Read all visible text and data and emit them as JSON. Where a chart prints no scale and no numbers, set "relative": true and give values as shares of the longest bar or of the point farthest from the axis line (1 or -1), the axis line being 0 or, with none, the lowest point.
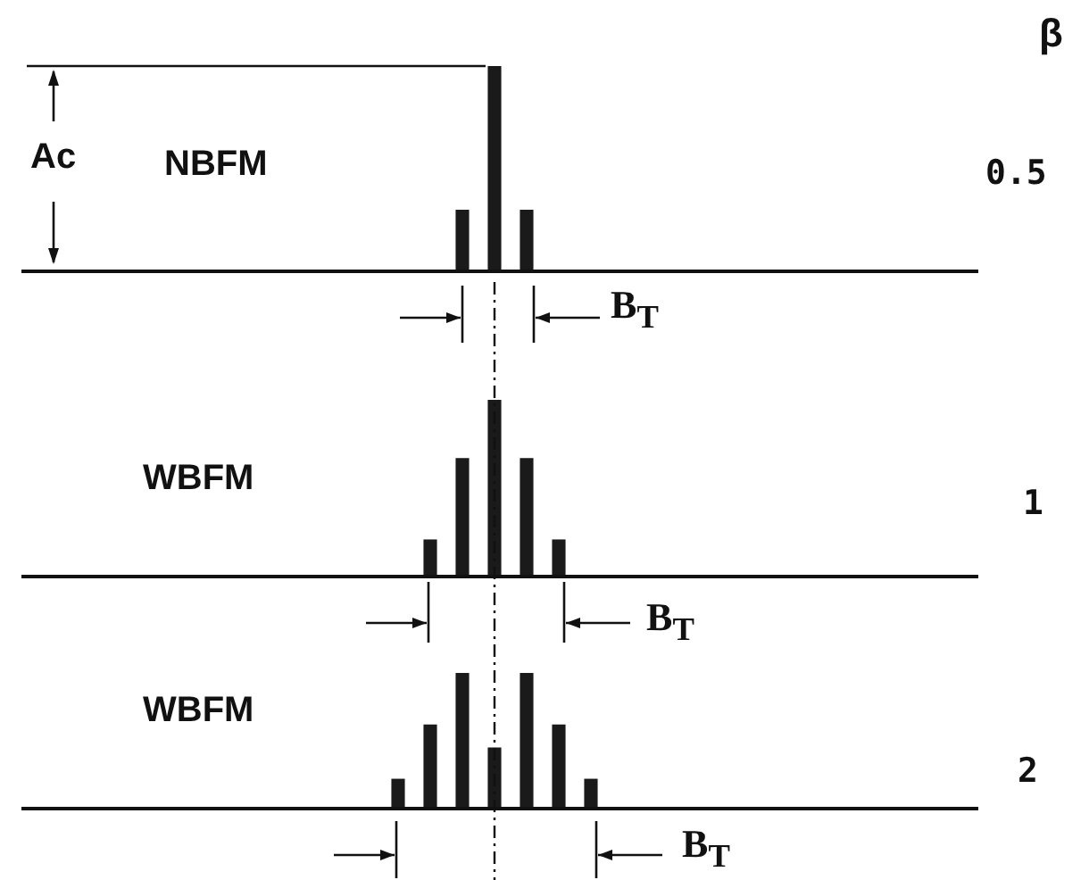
{
  "chart_data": [
    {
      "type": "bar",
      "relative": true,
      "color": "#1a1a1a",
      "categories": [
        null,
        null,
        null
      ],
      "values": [
        0.3,
        1,
        0.3
      ],
      "annotations": [
        "β",
        "Ac",
        "NBFM",
        "0.5",
        "B$_{T}$"
      ]
    },
    {
      "type": "bar",
      "relative": true,
      "color": "#1a1a1a",
      "categories": [
        null,
        null,
        null,
        null,
        null
      ],
      "values": [
        0.21,
        0.67,
        1,
        0.67,
        0.21
      ],
      "annotations": [
        "WBFM",
        "1",
        "B$_{T}$"
      ]
    },
    {
      "type": "bar",
      "relative": true,
      "color": "#1a1a1a",
      "categories": [
        null,
        null,
        null,
        null,
        null,
        null,
        null
      ],
      "values": [
        0.22,
        0.62,
        1,
        0.45,
        1,
        0.62,
        0.22
      ],
      "annotations": [
        "WBFM",
        "2",
        "B$_{T}$"
      ]
    }
  ]
}
